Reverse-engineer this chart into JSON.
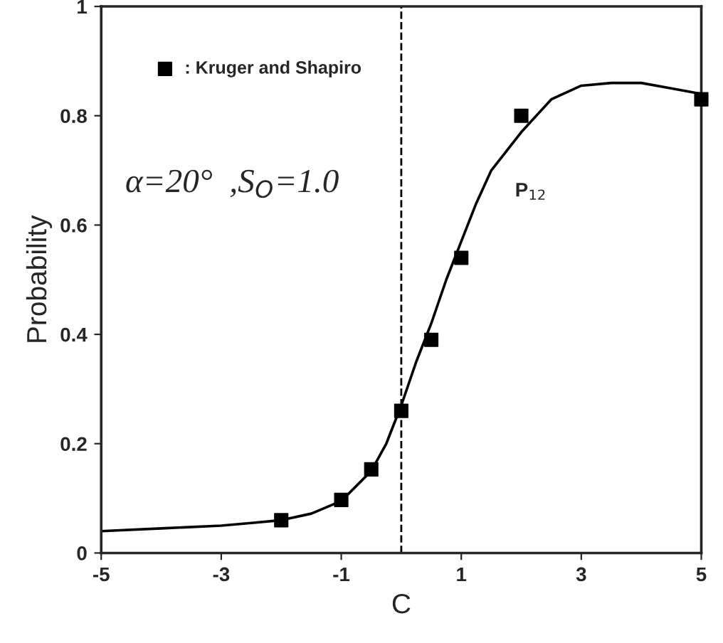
{
  "chart_data": {
    "type": "line",
    "xlabel": "C",
    "ylabel": "Probability",
    "x": [
      -5,
      -4,
      -3,
      -2.5,
      -2,
      -1.5,
      -1,
      -0.5,
      -0.25,
      0,
      0.25,
      0.5,
      0.75,
      1,
      1.25,
      1.5,
      2,
      2.5,
      3,
      3.5,
      4,
      4.5,
      5
    ],
    "series": [
      {
        "color": "#000000",
        "values": [
          0.04,
          0.045,
          0.05,
          0.055,
          0.06,
          0.072,
          0.095,
          0.15,
          0.2,
          0.27,
          0.35,
          0.42,
          0.5,
          0.57,
          0.64,
          0.7,
          0.77,
          0.83,
          0.855,
          0.86,
          0.86,
          0.85,
          0.84
        ]
      },
      {
        "name": ": Kruger and Shapiro",
        "type": "scatter",
        "marker": "square",
        "color": "#000000",
        "x": [
          -2,
          -1,
          -0.5,
          0,
          0.5,
          1,
          2,
          5
        ],
        "values": [
          0.06,
          0.097,
          0.153,
          0.26,
          0.39,
          0.54,
          0.8,
          0.83
        ]
      }
    ],
    "xlim": [
      -5,
      5
    ],
    "xticks": [
      -5,
      -3,
      -1,
      1,
      3,
      5
    ],
    "ylim": [
      0,
      1
    ],
    "yticks": [
      0,
      0.2,
      0.4,
      0.6,
      0.8,
      1
    ],
    "ref_lines": [
      {
        "axis": "x",
        "value": 0,
        "line_style": "dashed",
        "color": "#000000"
      }
    ],
    "annotations": [
      "α=20°  ,S$_{O}$=1.0",
      {
        "text": "P$_{12}$",
        "x": 1.5,
        "y": 0.7
      }
    ],
    "legend": "top left",
    "grid": false
  }
}
